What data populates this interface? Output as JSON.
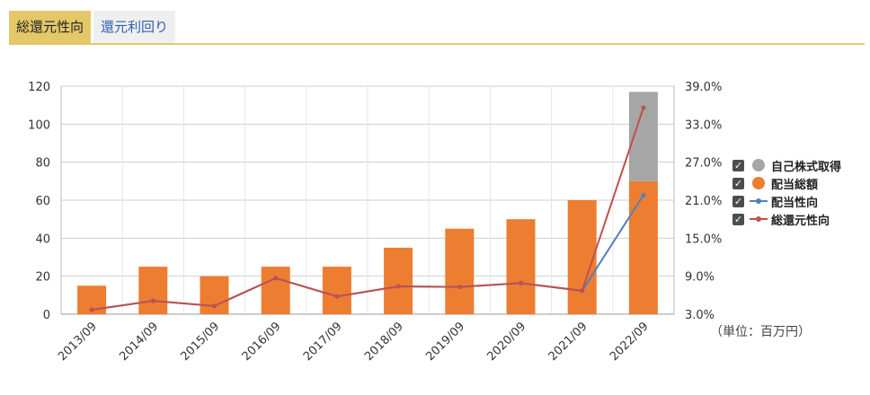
{
  "tabs": [
    {
      "label": "総還元性向",
      "active": true
    },
    {
      "label": "還元利回り",
      "active": false
    }
  ],
  "unit_note": "（単位：百万円）",
  "colors": {
    "buyback": "#a6a6a6",
    "dividend": "#ed7d31",
    "payout_line": "#4f81bd",
    "total_return_line": "#c0504d",
    "tab_accent": "#e4c868"
  },
  "legend": [
    {
      "label": "自己株式取得",
      "symbol": "circle",
      "color": "#a6a6a6"
    },
    {
      "label": "配当総額",
      "symbol": "circle",
      "color": "#ed7d31"
    },
    {
      "label": "配当性向",
      "symbol": "line",
      "color": "#4f81bd"
    },
    {
      "label": "総還元性向",
      "symbol": "line",
      "color": "#c0504d"
    }
  ],
  "chart_data": {
    "type": "bar",
    "categories": [
      "2013/09",
      "2014/09",
      "2015/09",
      "2016/09",
      "2017/09",
      "2018/09",
      "2019/09",
      "2020/09",
      "2021/09",
      "2022/09"
    ],
    "y_left": {
      "min": 0,
      "max": 120,
      "ticks": [
        "0",
        "20",
        "40",
        "60",
        "80",
        "100",
        "120"
      ]
    },
    "y_right": {
      "min": 3.0,
      "max": 39.0,
      "ticks": [
        "3.0%",
        "9.0%",
        "15.0%",
        "21.0%",
        "27.0%",
        "33.0%",
        "39.0%"
      ]
    },
    "grid": true,
    "legend_position": "right",
    "series": [
      {
        "name": "配当総額",
        "kind": "bar",
        "axis": "left",
        "values": [
          15,
          25,
          20,
          25,
          25,
          35,
          45,
          50,
          60,
          70
        ]
      },
      {
        "name": "自己株式取得",
        "kind": "bar-stacked",
        "axis": "left",
        "values": [
          0,
          0,
          0,
          0,
          0,
          0,
          0,
          0,
          0,
          47
        ]
      },
      {
        "name": "配当性向",
        "kind": "line",
        "axis": "right",
        "values": [
          3.7,
          5.1,
          4.3,
          8.7,
          5.8,
          7.4,
          7.3,
          7.9,
          6.7,
          21.8
        ]
      },
      {
        "name": "総還元性向",
        "kind": "line",
        "axis": "right",
        "values": [
          3.7,
          5.1,
          4.3,
          8.7,
          5.8,
          7.4,
          7.3,
          7.9,
          6.7,
          35.6
        ]
      }
    ]
  }
}
